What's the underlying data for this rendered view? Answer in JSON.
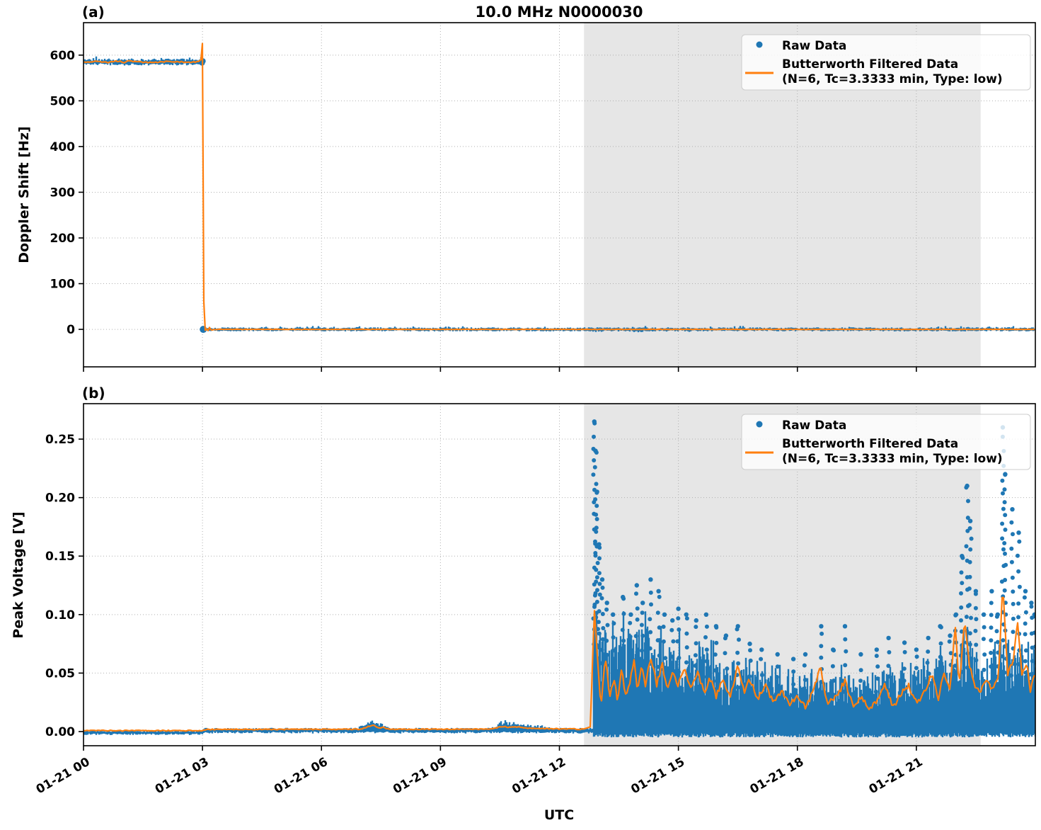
{
  "figure": {
    "title": "10.0 MHz N0000030",
    "xlabel": "UTC",
    "background": "#ffffff",
    "colors": {
      "raw": "#1f77b4",
      "filtered": "#ff7f0e",
      "shade": "#e6e6e6",
      "grid": "#b0b0b0",
      "spine": "#000000",
      "legend_bg": "rgba(255,255,255,0.8)",
      "legend_border": "#cccccc"
    }
  },
  "legend": {
    "raw_label": "Raw Data",
    "filtered_line1": "Butterworth Filtered Data",
    "filtered_line2": "(N=6, Tc=3.3333 min, Type: low)"
  },
  "chart_data": [
    {
      "type": "scatter+line",
      "panel_tag": "(a)",
      "ylabel": "Doppler Shift [Hz]",
      "ylim": [
        -82,
        671
      ],
      "yticks": [
        0,
        100,
        200,
        300,
        400,
        500,
        600
      ],
      "ytick_labels": [
        "0",
        "100",
        "200",
        "300",
        "400",
        "500",
        "600"
      ],
      "xlim_hours": [
        0,
        24
      ],
      "xticks_hours": [
        0,
        3,
        6,
        9,
        12,
        15,
        18,
        21
      ],
      "xtick_labels": [
        "01-21 00",
        "01-21 03",
        "01-21 06",
        "01-21 09",
        "01-21 12",
        "01-21 15",
        "01-21 18",
        "01-21 21"
      ],
      "grid": true,
      "legend_position": "upper right",
      "shaded_region_hours": [
        12.62,
        22.62
      ],
      "raw": {
        "label": "Raw Data",
        "style": "scatter",
        "segments": [
          {
            "t_start": 0,
            "t_end": 3.02,
            "level": 585,
            "spread": 7
          },
          {
            "t_start": 3.02,
            "t_end": 24,
            "level": 0,
            "spread": 4
          }
        ],
        "transition_hour": 3.02
      },
      "filtered": {
        "label": "Butterworth Filtered Data (N=6, Tc=3.3333 min, Type: low)",
        "style": "line",
        "keypoints": [
          [
            0,
            584
          ],
          [
            0.35,
            586
          ],
          [
            0.6,
            584
          ],
          [
            0.85,
            587
          ],
          [
            1.05,
            584
          ],
          [
            1.15,
            588
          ],
          [
            1.35,
            585
          ],
          [
            1.7,
            584
          ],
          [
            2.1,
            586
          ],
          [
            2.5,
            585
          ],
          [
            2.9,
            585
          ],
          [
            2.97,
            591
          ],
          [
            3.0,
            628
          ],
          [
            3.04,
            -50
          ],
          [
            3.08,
            16
          ],
          [
            3.12,
            -8
          ],
          [
            3.17,
            5
          ],
          [
            3.22,
            -2
          ],
          [
            3.3,
            0
          ],
          [
            6,
            0
          ],
          [
            9,
            0
          ],
          [
            12,
            0
          ],
          [
            15,
            0
          ],
          [
            18,
            0
          ],
          [
            21,
            0
          ],
          [
            24,
            0
          ]
        ]
      }
    },
    {
      "type": "scatter+line",
      "panel_tag": "(b)",
      "ylabel": "Peak Voltage [V]",
      "ylim": [
        -0.0121,
        0.2803
      ],
      "yticks": [
        0,
        0.05,
        0.1,
        0.15,
        0.2,
        0.25
      ],
      "ytick_labels": [
        "0.00",
        "0.05",
        "0.10",
        "0.15",
        "0.20",
        "0.25"
      ],
      "xlim_hours": [
        0,
        24
      ],
      "xticks_hours": [
        0,
        3,
        6,
        9,
        12,
        15,
        18,
        21
      ],
      "xtick_labels": [
        "01-21 00",
        "01-21 03",
        "01-21 06",
        "01-21 09",
        "01-21 12",
        "01-21 15",
        "01-21 18",
        "01-21 21"
      ],
      "grid": true,
      "legend_position": "upper right",
      "shaded_region_hours": [
        12.62,
        22.62
      ],
      "raw": {
        "label": "Raw Data",
        "style": "scatter",
        "baseline_segments": [
          {
            "t_start": 0,
            "t_end": 3.0,
            "level": -0.001,
            "spread": 0.0018
          },
          {
            "t_start": 3.0,
            "t_end": 12.85,
            "level": 0.0008,
            "spread": 0.0022
          }
        ],
        "bumps": [
          {
            "t": 7.1,
            "amp": 0.005,
            "width": 0.12
          },
          {
            "t": 7.3,
            "amp": 0.0065,
            "width": 0.15
          },
          {
            "t": 7.55,
            "amp": 0.004,
            "width": 0.12
          },
          {
            "t": 10.6,
            "amp": 0.0055,
            "width": 0.2
          },
          {
            "t": 10.9,
            "amp": 0.004,
            "width": 0.25
          },
          {
            "t": 11.4,
            "amp": 0.003,
            "width": 0.3
          }
        ],
        "active_start_hour": 12.85,
        "band_floor": -0.004,
        "band_top_keypoints": [
          [
            12.85,
            0.075
          ],
          [
            13.0,
            0.07
          ],
          [
            13.3,
            0.065
          ],
          [
            13.6,
            0.07
          ],
          [
            13.9,
            0.065
          ],
          [
            14.2,
            0.07
          ],
          [
            14.5,
            0.065
          ],
          [
            14.8,
            0.06
          ],
          [
            15.1,
            0.06
          ],
          [
            15.4,
            0.055
          ],
          [
            15.7,
            0.055
          ],
          [
            16.0,
            0.05
          ],
          [
            16.4,
            0.045
          ],
          [
            16.8,
            0.042
          ],
          [
            17.2,
            0.04
          ],
          [
            17.6,
            0.038
          ],
          [
            18.0,
            0.036
          ],
          [
            18.4,
            0.04
          ],
          [
            18.8,
            0.036
          ],
          [
            19.2,
            0.04
          ],
          [
            19.6,
            0.036
          ],
          [
            20.0,
            0.04
          ],
          [
            20.4,
            0.042
          ],
          [
            20.8,
            0.04
          ],
          [
            21.2,
            0.045
          ],
          [
            21.6,
            0.05
          ],
          [
            22.0,
            0.055
          ],
          [
            22.3,
            0.065
          ],
          [
            22.6,
            0.05
          ],
          [
            22.9,
            0.05
          ],
          [
            23.2,
            0.06
          ],
          [
            23.5,
            0.055
          ],
          [
            23.8,
            0.06
          ],
          [
            24.0,
            0.055
          ]
        ],
        "spike_columns": [
          [
            12.88,
            0.265
          ],
          [
            12.91,
            0.24
          ],
          [
            12.95,
            0.205
          ],
          [
            13.0,
            0.16
          ],
          [
            13.08,
            0.13
          ],
          [
            13.2,
            0.11
          ],
          [
            13.35,
            0.1
          ],
          [
            13.6,
            0.115
          ],
          [
            13.8,
            0.1
          ],
          [
            13.95,
            0.125
          ],
          [
            14.1,
            0.11
          ],
          [
            14.3,
            0.13
          ],
          [
            14.5,
            0.12
          ],
          [
            14.65,
            0.1
          ],
          [
            14.85,
            0.095
          ],
          [
            15.0,
            0.105
          ],
          [
            15.2,
            0.1
          ],
          [
            15.45,
            0.095
          ],
          [
            15.7,
            0.1
          ],
          [
            15.95,
            0.09
          ],
          [
            16.2,
            0.082
          ],
          [
            16.5,
            0.09
          ],
          [
            16.8,
            0.075
          ],
          [
            17.1,
            0.07
          ],
          [
            17.5,
            0.066
          ],
          [
            17.9,
            0.062
          ],
          [
            18.2,
            0.066
          ],
          [
            18.6,
            0.09
          ],
          [
            18.9,
            0.07
          ],
          [
            19.2,
            0.09
          ],
          [
            19.6,
            0.066
          ],
          [
            20.0,
            0.07
          ],
          [
            20.3,
            0.08
          ],
          [
            20.7,
            0.076
          ],
          [
            21.0,
            0.07
          ],
          [
            21.3,
            0.08
          ],
          [
            21.6,
            0.09
          ],
          [
            21.85,
            0.082
          ],
          [
            22.0,
            0.1
          ],
          [
            22.15,
            0.15
          ],
          [
            22.28,
            0.21
          ],
          [
            22.36,
            0.18
          ],
          [
            22.5,
            0.12
          ],
          [
            22.7,
            0.1
          ],
          [
            22.9,
            0.12
          ],
          [
            23.05,
            0.1
          ],
          [
            23.18,
            0.26
          ],
          [
            23.24,
            0.22
          ],
          [
            23.42,
            0.19
          ],
          [
            23.58,
            0.17
          ],
          [
            23.75,
            0.12
          ],
          [
            23.9,
            0.11
          ],
          [
            23.98,
            0.1
          ]
        ]
      },
      "filtered": {
        "label": "Butterworth Filtered Data (N=6, Tc=3.3333 min, Type: low)",
        "style": "line",
        "keypoints": [
          [
            0,
            0.0008
          ],
          [
            3.0,
            0.0008
          ],
          [
            3.1,
            0.0018
          ],
          [
            7.0,
            0.002
          ],
          [
            7.15,
            0.004
          ],
          [
            7.3,
            0.0055
          ],
          [
            7.45,
            0.003
          ],
          [
            7.55,
            0.004
          ],
          [
            7.7,
            0.002
          ],
          [
            10.3,
            0.002
          ],
          [
            10.55,
            0.0045
          ],
          [
            10.75,
            0.0035
          ],
          [
            10.95,
            0.004
          ],
          [
            11.2,
            0.003
          ],
          [
            11.6,
            0.0025
          ],
          [
            12.6,
            0.002
          ],
          [
            12.78,
            0.004
          ],
          [
            12.88,
            0.105
          ],
          [
            12.97,
            0.058
          ],
          [
            13.05,
            0.02
          ],
          [
            13.16,
            0.065
          ],
          [
            13.27,
            0.028
          ],
          [
            13.37,
            0.047
          ],
          [
            13.47,
            0.024
          ],
          [
            13.57,
            0.055
          ],
          [
            13.67,
            0.03
          ],
          [
            13.78,
            0.042
          ],
          [
            13.88,
            0.06
          ],
          [
            13.97,
            0.034
          ],
          [
            14.07,
            0.056
          ],
          [
            14.17,
            0.04
          ],
          [
            14.3,
            0.065
          ],
          [
            14.45,
            0.04
          ],
          [
            14.6,
            0.057
          ],
          [
            14.72,
            0.035
          ],
          [
            14.85,
            0.05
          ],
          [
            15.0,
            0.04
          ],
          [
            15.15,
            0.056
          ],
          [
            15.3,
            0.035
          ],
          [
            15.5,
            0.05
          ],
          [
            15.65,
            0.034
          ],
          [
            15.8,
            0.046
          ],
          [
            15.95,
            0.03
          ],
          [
            16.12,
            0.045
          ],
          [
            16.3,
            0.03
          ],
          [
            16.5,
            0.055
          ],
          [
            16.65,
            0.034
          ],
          [
            16.8,
            0.044
          ],
          [
            17.0,
            0.028
          ],
          [
            17.2,
            0.04
          ],
          [
            17.4,
            0.024
          ],
          [
            17.6,
            0.034
          ],
          [
            17.8,
            0.024
          ],
          [
            18.0,
            0.03
          ],
          [
            18.2,
            0.021
          ],
          [
            18.4,
            0.034
          ],
          [
            18.58,
            0.055
          ],
          [
            18.75,
            0.024
          ],
          [
            19.0,
            0.03
          ],
          [
            19.2,
            0.044
          ],
          [
            19.4,
            0.021
          ],
          [
            19.6,
            0.03
          ],
          [
            19.8,
            0.019
          ],
          [
            20.0,
            0.027
          ],
          [
            20.2,
            0.04
          ],
          [
            20.4,
            0.021
          ],
          [
            20.6,
            0.031
          ],
          [
            20.8,
            0.04
          ],
          [
            21.0,
            0.024
          ],
          [
            21.2,
            0.034
          ],
          [
            21.4,
            0.05
          ],
          [
            21.55,
            0.028
          ],
          [
            21.7,
            0.05
          ],
          [
            21.85,
            0.034
          ],
          [
            21.98,
            0.09
          ],
          [
            22.08,
            0.04
          ],
          [
            22.22,
            0.095
          ],
          [
            22.33,
            0.058
          ],
          [
            22.48,
            0.04
          ],
          [
            22.62,
            0.034
          ],
          [
            22.78,
            0.045
          ],
          [
            22.93,
            0.034
          ],
          [
            23.08,
            0.05
          ],
          [
            23.18,
            0.128
          ],
          [
            23.3,
            0.048
          ],
          [
            23.44,
            0.06
          ],
          [
            23.55,
            0.095
          ],
          [
            23.66,
            0.05
          ],
          [
            23.78,
            0.06
          ],
          [
            23.88,
            0.034
          ],
          [
            24,
            0.052
          ]
        ]
      }
    }
  ]
}
